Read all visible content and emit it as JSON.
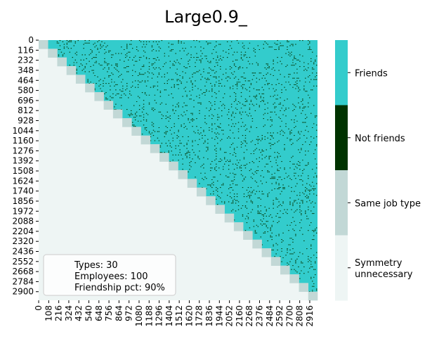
{
  "chart_data": {
    "type": "heatmap",
    "title": "Large0.9_",
    "n": 3000,
    "block_size": 30,
    "friendship_pct": 0.9,
    "y_ticks": [
      0,
      116,
      232,
      348,
      464,
      580,
      696,
      812,
      928,
      1044,
      1160,
      1276,
      1392,
      1508,
      1624,
      1740,
      1856,
      1972,
      2088,
      2204,
      2320,
      2436,
      2552,
      2668,
      2784,
      2900
    ],
    "x_ticks": [
      0,
      108,
      216,
      324,
      432,
      540,
      648,
      756,
      864,
      972,
      1080,
      1188,
      1296,
      1404,
      1512,
      1620,
      1728,
      1836,
      1944,
      2052,
      2160,
      2268,
      2376,
      2484,
      2592,
      2700,
      2808,
      2916
    ],
    "categories": [
      {
        "label": "Friends",
        "color": "#33cccc"
      },
      {
        "label": "Not friends",
        "color": "#003300"
      },
      {
        "label": "Same job type",
        "color": "#c2d8d6"
      },
      {
        "label": "Symmetry unnecessary",
        "color": "#eef5f4"
      }
    ],
    "colorbar_lines": [
      [
        "Friends"
      ],
      [
        "Not friends"
      ],
      [
        "Same job type"
      ],
      [
        "Symmetry",
        "unnecessary"
      ]
    ],
    "annotation": {
      "lines": [
        "Types: 30",
        "Employees: 100",
        "Friendship pct: 90%"
      ]
    }
  }
}
